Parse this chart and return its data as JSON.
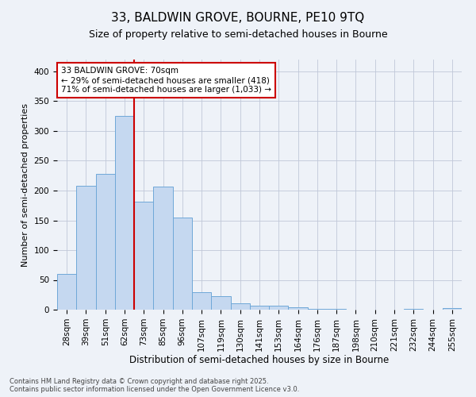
{
  "title_line1": "33, BALDWIN GROVE, BOURNE, PE10 9TQ",
  "title_line2": "Size of property relative to semi-detached houses in Bourne",
  "xlabel": "Distribution of semi-detached houses by size in Bourne",
  "ylabel": "Number of semi-detached properties",
  "footnote": "Contains HM Land Registry data © Crown copyright and database right 2025.\nContains public sector information licensed under the Open Government Licence v3.0.",
  "annotation_title": "33 BALDWIN GROVE: 70sqm",
  "annotation_line2": "← 29% of semi-detached houses are smaller (418)",
  "annotation_line3": "71% of semi-detached houses are larger (1,033) →",
  "categories": [
    "28sqm",
    "39sqm",
    "51sqm",
    "62sqm",
    "73sqm",
    "85sqm",
    "96sqm",
    "107sqm",
    "119sqm",
    "130sqm",
    "141sqm",
    "153sqm",
    "164sqm",
    "176sqm",
    "187sqm",
    "198sqm",
    "210sqm",
    "221sqm",
    "232sqm",
    "244sqm",
    "255sqm"
  ],
  "values": [
    60,
    208,
    228,
    325,
    181,
    207,
    155,
    30,
    23,
    11,
    7,
    7,
    4,
    1,
    1,
    0,
    0,
    0,
    2,
    0,
    3
  ],
  "bar_color": "#c5d8f0",
  "bar_edge_color": "#6fa8d8",
  "vline_color": "#cc0000",
  "vline_x_index": 4,
  "grid_color": "#c0c8d8",
  "background_color": "#eef2f8",
  "ylim": [
    0,
    420
  ],
  "yticks": [
    0,
    50,
    100,
    150,
    200,
    250,
    300,
    350,
    400
  ],
  "title1_fontsize": 11,
  "title2_fontsize": 9,
  "ylabel_fontsize": 8,
  "xlabel_fontsize": 8.5,
  "tick_fontsize": 7.5,
  "annot_fontsize": 7.5,
  "footnote_fontsize": 6
}
